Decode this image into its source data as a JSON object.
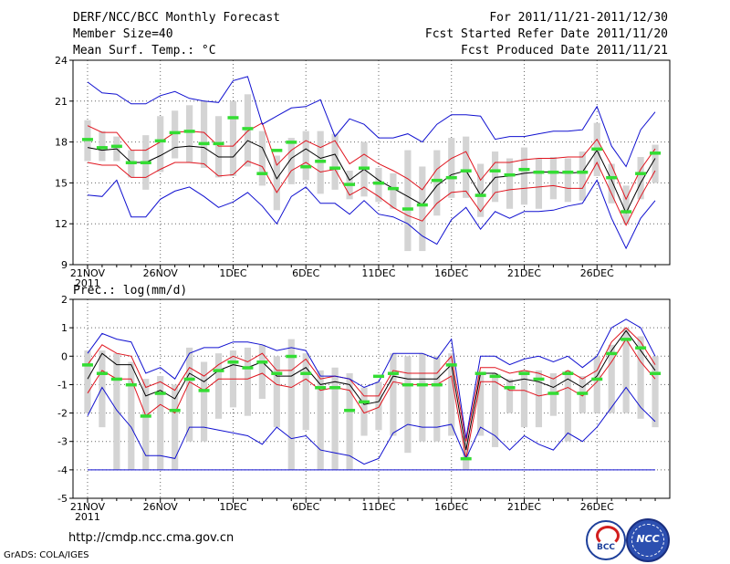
{
  "header": {
    "title": "DERF/NCC/BCC Monthly Forecast",
    "member_size": "Member Size=40",
    "variable": "Mean Surf. Temp.: °C",
    "period": "For 2011/11/21-2011/12/30",
    "started": "Fcst Started Refer Date 2011/11/20",
    "produced": "Fcst Produced Date 2011/11/21"
  },
  "footer": {
    "url": "http://cmdp.ncc.cma.gov.cn",
    "credit": "GrADS: COLA/IGES",
    "logo_bcc": "BCC",
    "logo_ncc": "NCC"
  },
  "colors": {
    "ens_mean": "#000000",
    "spread": "#e0141e",
    "envelope": "#1010d0",
    "box": "#d4d4d4",
    "median": "#33dd33",
    "floor": "#1010d0"
  },
  "chart_data": [
    {
      "type": "line",
      "title": "Mean Surf. Temp.: °C",
      "x_tick_labels": [
        "21NOV",
        "26NOV",
        "1DEC",
        "6DEC",
        "11DEC",
        "16DEC",
        "21DEC",
        "26DEC"
      ],
      "x_tick_days": [
        1,
        6,
        11,
        16,
        21,
        26,
        31,
        36
      ],
      "x_year_label": "2011",
      "xlim": [
        0,
        41
      ],
      "ylim": [
        9,
        24
      ],
      "y_ticks": [
        9,
        12,
        15,
        18,
        21,
        24
      ],
      "series": [
        {
          "name": "ensemble mean",
          "values": [
            17.6,
            17.4,
            17.5,
            16.5,
            16.5,
            17.0,
            17.6,
            17.7,
            17.6,
            16.9,
            16.9,
            18.1,
            17.6,
            15.3,
            16.8,
            17.5,
            16.8,
            17.1,
            15.2,
            16.0,
            15.2,
            14.6,
            14.0,
            13.4,
            14.8,
            15.6,
            15.9,
            14.1,
            15.4,
            15.5,
            15.7,
            15.8,
            15.8,
            15.7,
            15.8,
            17.4,
            15.2,
            12.8,
            15.0,
            16.8
          ]
        },
        {
          "name": "spread upper",
          "values": [
            19.2,
            18.7,
            18.7,
            17.4,
            17.4,
            18.0,
            18.7,
            18.8,
            18.7,
            17.7,
            17.7,
            18.8,
            19.4,
            16.3,
            17.4,
            18.1,
            17.6,
            18.1,
            16.4,
            17.1,
            16.4,
            15.9,
            15.3,
            14.5,
            16.0,
            16.8,
            17.3,
            15.2,
            16.5,
            16.5,
            16.7,
            16.8,
            16.8,
            16.9,
            16.9,
            18.2,
            16.3,
            13.8,
            16.0,
            17.5
          ]
        },
        {
          "name": "spread lower",
          "values": [
            16.5,
            16.3,
            16.3,
            15.4,
            15.4,
            16.0,
            16.5,
            16.5,
            16.4,
            15.5,
            15.6,
            16.6,
            16.2,
            14.3,
            15.9,
            16.5,
            15.8,
            16.0,
            14.1,
            14.7,
            14.0,
            13.2,
            12.6,
            12.2,
            13.5,
            14.3,
            14.4,
            12.9,
            14.3,
            14.5,
            14.6,
            14.7,
            14.8,
            14.6,
            14.6,
            16.5,
            14.2,
            11.9,
            14.0,
            15.9
          ]
        },
        {
          "name": "max",
          "values": [
            22.4,
            21.6,
            21.5,
            20.8,
            20.8,
            21.4,
            21.7,
            21.2,
            21.0,
            20.9,
            22.5,
            22.8,
            19.3,
            19.9,
            20.5,
            20.6,
            21.1,
            18.4,
            19.7,
            19.3,
            18.3,
            18.3,
            18.6,
            18.0,
            19.3,
            20.0,
            20.0,
            19.9,
            18.2,
            18.4,
            18.4,
            18.6,
            18.8,
            18.8,
            18.9,
            20.6,
            17.7,
            16.2,
            18.9,
            20.2
          ]
        },
        {
          "name": "min",
          "values": [
            14.1,
            14.0,
            15.2,
            12.5,
            12.5,
            13.8,
            14.4,
            14.7,
            14.0,
            13.2,
            13.6,
            14.3,
            13.3,
            12.0,
            14.0,
            14.7,
            13.5,
            13.5,
            12.7,
            13.7,
            12.7,
            12.5,
            12.0,
            11.1,
            10.5,
            12.3,
            13.2,
            11.6,
            12.9,
            12.4,
            12.9,
            12.9,
            13.0,
            13.3,
            13.5,
            15.2,
            12.4,
            10.2,
            12.4,
            13.7
          ]
        }
      ],
      "box_lo": [
        16.6,
        16.6,
        16.6,
        15.4,
        14.5,
        15.8,
        16.8,
        16.5,
        16.1,
        15.4,
        15.5,
        16.2,
        14.8,
        13.0,
        14.9,
        15.2,
        14.2,
        14.5,
        13.8,
        14.0,
        13.6,
        13.1,
        10.0,
        10.0,
        12.6,
        13.9,
        13.9,
        12.5,
        13.6,
        13.1,
        13.4,
        13.1,
        13.8,
        13.6,
        13.7,
        15.5,
        13.5,
        12.0,
        13.8,
        15.0
      ],
      "box_hi": [
        19.6,
        18.8,
        18.4,
        17.4,
        18.5,
        19.9,
        20.3,
        20.7,
        21.0,
        19.9,
        21.0,
        21.5,
        18.8,
        17.0,
        18.3,
        18.8,
        18.8,
        18.6,
        15.9,
        18.0,
        16.1,
        15.7,
        17.4,
        16.2,
        17.4,
        18.3,
        18.4,
        16.4,
        17.3,
        16.8,
        17.6,
        16.8,
        16.9,
        16.8,
        17.3,
        19.4,
        16.4,
        14.8,
        16.9,
        17.8
      ],
      "medians": [
        18.2,
        17.6,
        17.7,
        16.5,
        16.5,
        18.1,
        18.7,
        18.8,
        17.9,
        17.9,
        19.8,
        19.0,
        15.7,
        17.4,
        18.0,
        16.2,
        16.6,
        16.1,
        14.9,
        16.1,
        15.0,
        14.6,
        13.1,
        13.4,
        15.2,
        15.4,
        15.9,
        14.1,
        15.9,
        15.6,
        16.0,
        15.8,
        15.8,
        15.8,
        15.8,
        17.5,
        15.4,
        12.9,
        15.7,
        17.2
      ]
    },
    {
      "type": "line",
      "title": "Prec.: log(mm/d)",
      "x_tick_labels": [
        "21NOV",
        "26NOV",
        "1DEC",
        "6DEC",
        "11DEC",
        "16DEC",
        "21DEC",
        "26DEC"
      ],
      "x_tick_days": [
        1,
        6,
        11,
        16,
        21,
        26,
        31,
        36
      ],
      "x_year_label": "2011",
      "xlim": [
        0,
        41
      ],
      "ylim": [
        -5,
        2
      ],
      "y_ticks": [
        -5,
        -4,
        -3,
        -2,
        -1,
        0,
        1,
        2
      ],
      "floor_value": -4,
      "series": [
        {
          "name": "ensemble mean",
          "values": [
            -0.8,
            0.1,
            -0.3,
            -0.3,
            -1.4,
            -1.2,
            -1.5,
            -0.6,
            -0.9,
            -0.5,
            -0.3,
            -0.4,
            -0.2,
            -0.7,
            -0.7,
            -0.4,
            -1.0,
            -0.9,
            -1.0,
            -1.7,
            -1.6,
            -0.7,
            -0.8,
            -0.8,
            -0.8,
            -0.3,
            -3.3,
            -0.6,
            -0.6,
            -0.9,
            -0.8,
            -0.9,
            -1.1,
            -0.8,
            -1.1,
            -0.7,
            0.2,
            0.9,
            0.2,
            -0.5
          ]
        },
        {
          "name": "spread upper",
          "values": [
            -0.3,
            0.4,
            0.1,
            0.0,
            -1.1,
            -0.9,
            -1.2,
            -0.4,
            -0.7,
            -0.3,
            0.0,
            -0.2,
            0.1,
            -0.5,
            -0.5,
            -0.1,
            -0.8,
            -0.7,
            -0.8,
            -1.4,
            -1.4,
            -0.5,
            -0.6,
            -0.6,
            -0.6,
            0.0,
            -3.0,
            -0.4,
            -0.4,
            -0.6,
            -0.5,
            -0.6,
            -0.8,
            -0.5,
            -0.8,
            -0.5,
            0.5,
            1.0,
            0.5,
            -0.3
          ]
        },
        {
          "name": "spread lower",
          "values": [
            -1.3,
            -0.5,
            -0.8,
            -0.8,
            -2.1,
            -1.7,
            -2.0,
            -0.9,
            -1.2,
            -0.8,
            -0.8,
            -0.8,
            -0.6,
            -1.0,
            -1.1,
            -0.8,
            -1.2,
            -1.1,
            -1.2,
            -2.0,
            -1.8,
            -0.9,
            -1.0,
            -1.0,
            -1.0,
            -0.7,
            -3.6,
            -0.9,
            -0.9,
            -1.2,
            -1.2,
            -1.4,
            -1.3,
            -1.1,
            -1.4,
            -0.9,
            -0.2,
            0.6,
            -0.2,
            -0.8
          ]
        },
        {
          "name": "max",
          "values": [
            0.1,
            0.8,
            0.6,
            0.5,
            -0.6,
            -0.4,
            -0.8,
            0.1,
            0.3,
            0.3,
            0.5,
            0.5,
            0.4,
            0.2,
            0.3,
            0.2,
            -0.7,
            -0.7,
            -0.8,
            -1.1,
            -0.9,
            0.1,
            0.1,
            0.1,
            -0.1,
            0.6,
            -2.9,
            0.0,
            0.0,
            -0.3,
            -0.1,
            0.0,
            -0.2,
            0.0,
            -0.4,
            0.0,
            1.0,
            1.3,
            1.0,
            0.0
          ]
        },
        {
          "name": "min",
          "values": [
            -2.1,
            -1.1,
            -1.9,
            -2.5,
            -3.5,
            -3.5,
            -3.6,
            -2.5,
            -2.5,
            -2.6,
            -2.7,
            -2.8,
            -3.1,
            -2.5,
            -2.9,
            -2.8,
            -3.3,
            -3.4,
            -3.5,
            -3.8,
            -3.6,
            -2.7,
            -2.4,
            -2.5,
            -2.5,
            -2.4,
            -3.6,
            -2.5,
            -2.8,
            -3.3,
            -2.8,
            -3.1,
            -3.3,
            -2.7,
            -3.0,
            -2.5,
            -1.8,
            -1.1,
            -1.8,
            -2.3
          ]
        }
      ],
      "box_lo": [
        -2.0,
        -2.5,
        -4.0,
        -4.0,
        -4.0,
        -4.0,
        -4.0,
        -3.0,
        -3.0,
        -2.2,
        -1.8,
        -2.1,
        -1.5,
        -2.5,
        -4.0,
        -2.6,
        -4.0,
        -4.0,
        -4.0,
        -2.8,
        -2.6,
        -2.8,
        -3.4,
        -3.0,
        -3.0,
        -2.8,
        -4.0,
        -2.8,
        -3.2,
        -2.0,
        -2.5,
        -2.5,
        -2.1,
        -3.0,
        -2.0,
        -2.0,
        -2.0,
        -2.0,
        -2.2,
        -2.5
      ],
      "box_hi": [
        0.2,
        0.2,
        0.1,
        -0.2,
        -0.8,
        -0.7,
        -1.0,
        0.3,
        -0.2,
        0.1,
        0.2,
        0.3,
        0.4,
        0.0,
        0.6,
        0.1,
        -0.5,
        -0.4,
        -0.6,
        -1.1,
        -0.9,
        0.1,
        0.0,
        0.1,
        0.0,
        0.1,
        -2.8,
        -0.6,
        -0.6,
        -0.8,
        -0.5,
        -0.5,
        -0.6,
        -0.5,
        -0.7,
        0.0,
        0.4,
        1.0,
        0.7,
        0.0
      ],
      "medians": [
        -0.3,
        -0.6,
        -0.8,
        -1.0,
        -2.1,
        -1.3,
        -1.9,
        -0.8,
        -1.2,
        -0.5,
        -0.2,
        -0.4,
        -0.2,
        -0.6,
        0.0,
        -0.6,
        -1.1,
        -1.1,
        -1.9,
        -1.6,
        -0.7,
        -0.6,
        -1.0,
        -1.0,
        -1.0,
        -0.3,
        -3.6,
        -0.6,
        -0.7,
        -1.1,
        -0.6,
        -0.8,
        -1.3,
        -0.6,
        -1.3,
        -0.8,
        0.1,
        0.6,
        0.3,
        -0.6
      ]
    }
  ]
}
